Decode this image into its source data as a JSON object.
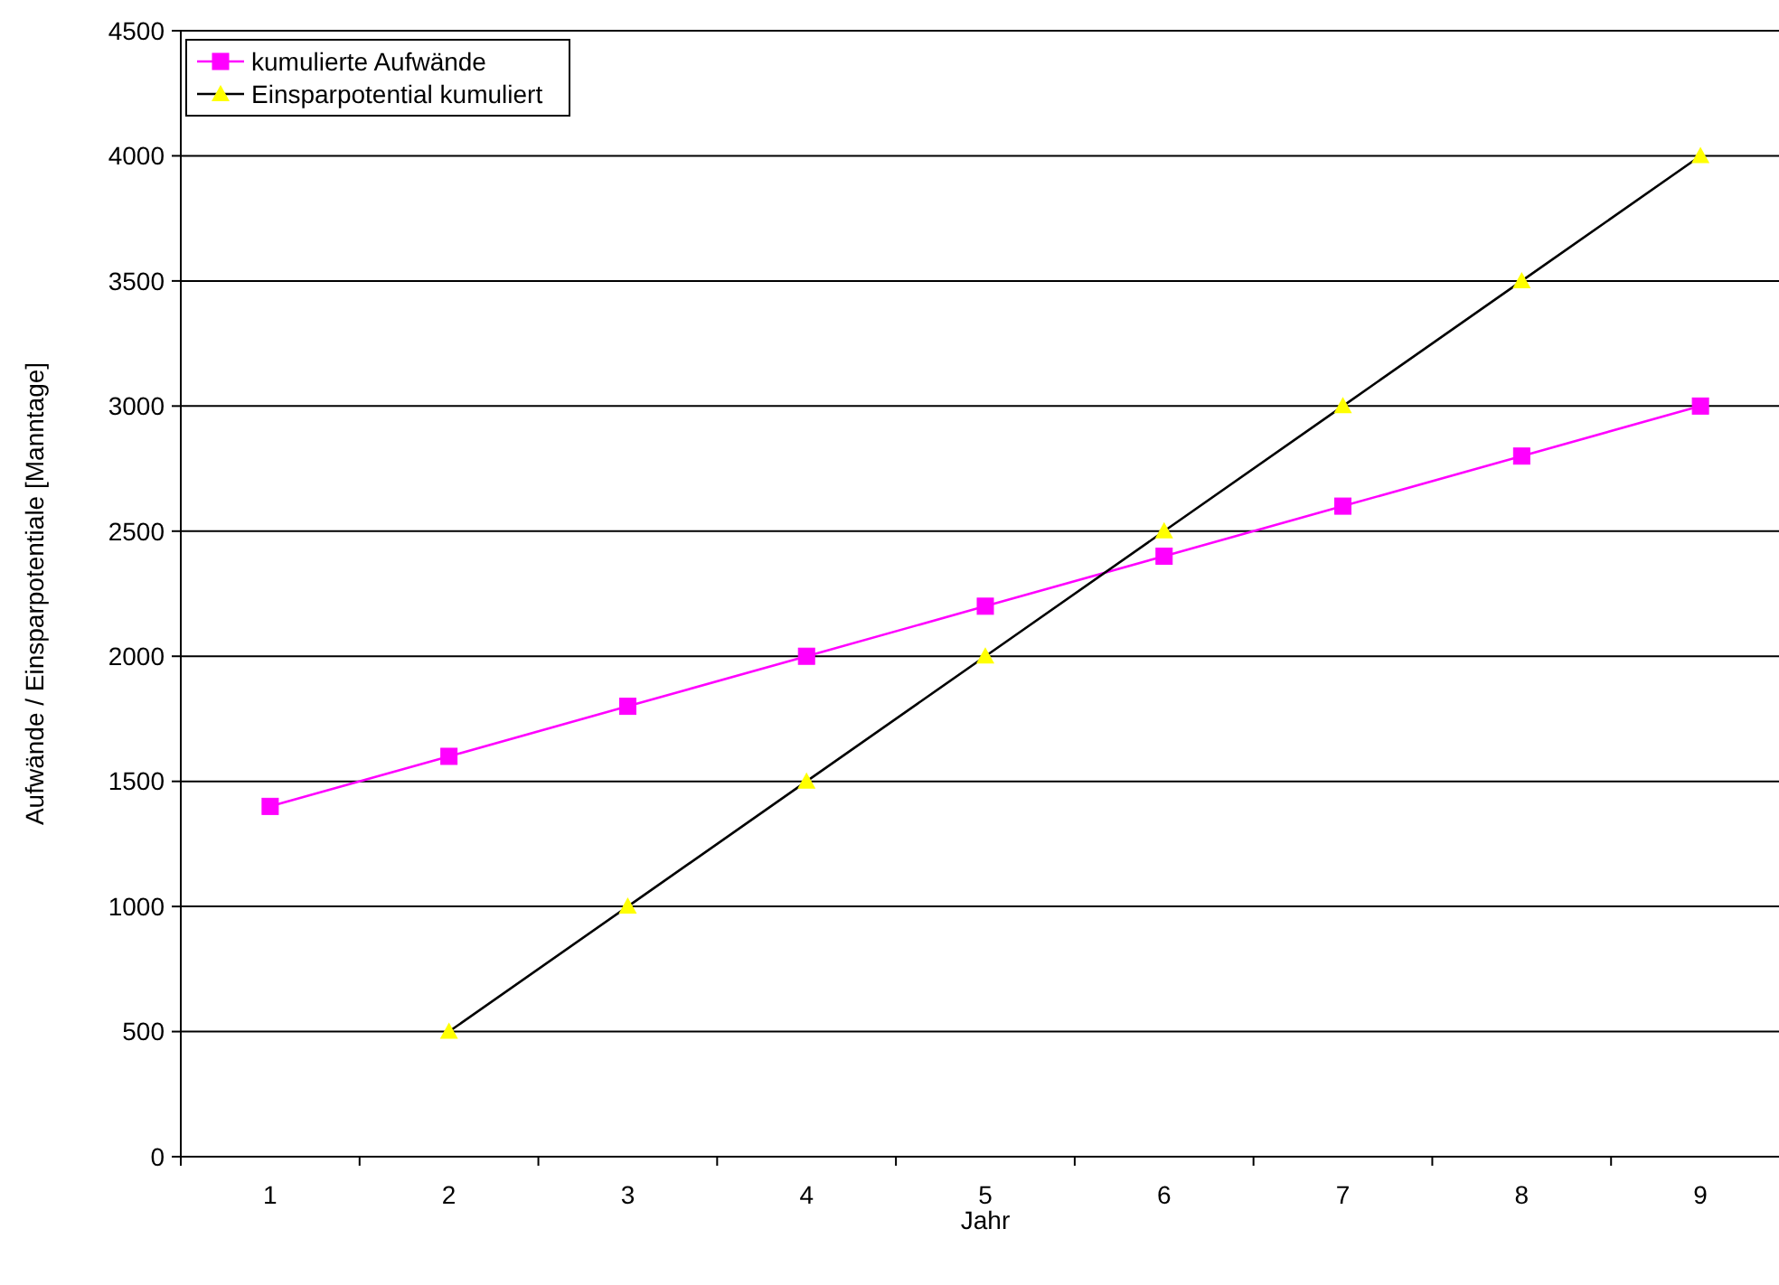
{
  "chart_data": {
    "type": "line",
    "xlabel": "Jahr",
    "ylabel": "Aufwände / Einsparpotentiale [Manntage]",
    "categories": [
      "1",
      "2",
      "3",
      "4",
      "5",
      "6",
      "7",
      "8",
      "9"
    ],
    "series": [
      {
        "name": "kumulierte Aufwände",
        "color": "#ff00ff",
        "marker": "square",
        "values": [
          1400,
          1600,
          1800,
          2000,
          2200,
          2400,
          2600,
          2800,
          3000
        ]
      },
      {
        "name": "Einsparpotential kumuliert",
        "color": "#000000",
        "marker": "triangle",
        "colors": [
          null,
          "#ffff00",
          "#ffff00",
          "#ffff00",
          "#ffff00",
          "#ffff00",
          "#ffff00",
          "#ffff00",
          "#ffff00"
        ],
        "values": [
          null,
          500,
          1000,
          1500,
          2000,
          2500,
          3000,
          3500,
          4000
        ]
      }
    ],
    "ylim": [
      0,
      4500
    ],
    "yticks": [
      0,
      500,
      1000,
      1500,
      2000,
      2500,
      3000,
      3500,
      4000,
      4500
    ],
    "grid": "y",
    "legend": "top left"
  }
}
